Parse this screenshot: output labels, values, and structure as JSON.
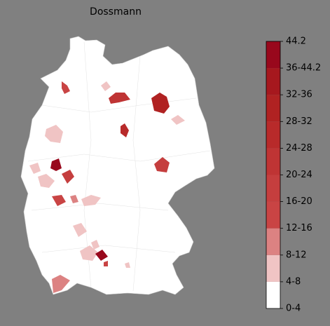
{
  "title": "Dossmann",
  "colorbar": {
    "labels": [
      "0-4",
      "4-8",
      "8-12",
      "12-16",
      "16-20",
      "20-24",
      "24-28",
      "28-32",
      "32-36",
      "36-44.2",
      "44.2"
    ],
    "colors": [
      "#ffffff",
      "#f0c4c4",
      "#dc8282",
      "#c94444",
      "#c53e3e",
      "#bf3434",
      "#b82a2a",
      "#b02222",
      "#a6181e",
      "#98081c"
    ]
  }
}
